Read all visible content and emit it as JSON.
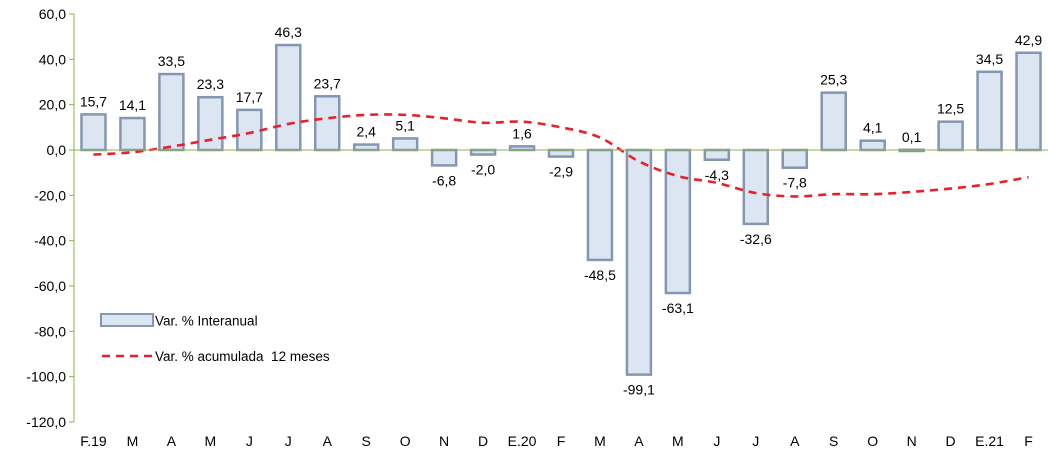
{
  "chart_data": {
    "type": "bar",
    "categories": [
      "F.19",
      "M",
      "A",
      "M",
      "J",
      "J",
      "A",
      "S",
      "O",
      "N",
      "D",
      "E.20",
      "F",
      "M",
      "A",
      "M",
      "J",
      "J",
      "A",
      "S",
      "O",
      "N",
      "D",
      "E.21",
      "F"
    ],
    "series": [
      {
        "name": "Var. % Interanual",
        "type": "bar",
        "values": [
          15.7,
          14.1,
          33.5,
          23.3,
          17.7,
          46.3,
          23.7,
          2.4,
          5.1,
          -6.8,
          -2.0,
          1.6,
          -2.9,
          -48.5,
          -99.1,
          -63.1,
          -4.3,
          -32.6,
          -7.8,
          25.3,
          4.1,
          0.1,
          12.5,
          34.5,
          42.9
        ],
        "labels": [
          "15,7",
          "14,1",
          "33,5",
          "23,3",
          "17,7",
          "46,3",
          "23,7",
          "2,4",
          "5,1",
          "-6,8",
          "-2,0",
          "1,6",
          "-2,9",
          "-48,5",
          "-99,1",
          "-63,1",
          "-4,3",
          "-32,6",
          "-7,8",
          "25,3",
          "4,1",
          "0,1",
          "12,5",
          "34,5",
          "42,9"
        ]
      },
      {
        "name": "Var. % acumulada  12 meses",
        "type": "line",
        "style": "dashed",
        "values": [
          -2.0,
          -1.0,
          1.5,
          4.5,
          7.5,
          11.5,
          14.0,
          15.5,
          15.5,
          14.0,
          12.0,
          12.5,
          10.0,
          5.5,
          -5.0,
          -11.5,
          -14.5,
          -19.0,
          -20.5,
          -19.5,
          -19.5,
          -18.5,
          -17.0,
          -15.0,
          -12.0
        ]
      }
    ],
    "ylim": [
      -120,
      60
    ],
    "yticks": [
      "60,0",
      "40,0",
      "20,0",
      "0,0",
      "-20,0",
      "-40,0",
      "-60,0",
      "-80,0",
      "-100,0",
      "-120,0"
    ],
    "ytick_values": [
      60,
      40,
      20,
      0,
      -20,
      -40,
      -60,
      -80,
      -100,
      -120
    ],
    "grid": false,
    "legend_position": "bottom-left",
    "colors": {
      "bar_fill": "#dce6f2",
      "bar_stroke": "#8497b0",
      "line": "#e8202a",
      "axis": "#8db34a"
    }
  }
}
